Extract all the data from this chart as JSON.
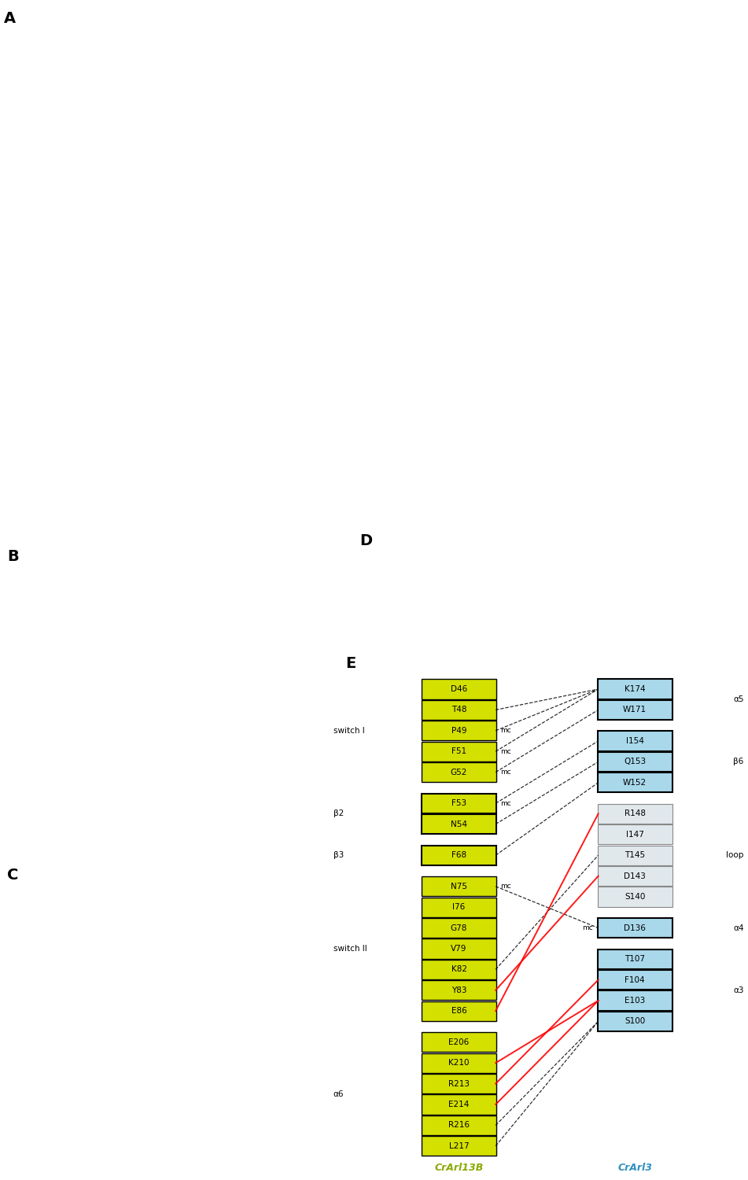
{
  "figure_width": 9.51,
  "figure_height": 15.0,
  "panel_E": {
    "left_label": "CrArl13B",
    "right_label": "CrArl3",
    "left_label_color": "#8aaa00",
    "right_label_color": "#3090c0",
    "yellow_fill": "#d4e000",
    "blue_fill": "#a8d8ea",
    "grey_fill": "#e0e8ec",
    "left_groups": [
      {
        "group": "switch I",
        "items": [
          "D46",
          "T48",
          "P49",
          "F51",
          "G52"
        ],
        "bordered": false
      },
      {
        "group": "β2",
        "items": [
          "F53",
          "N54"
        ],
        "bordered": true
      },
      {
        "group": "β3",
        "items": [
          "F68"
        ],
        "bordered": true
      },
      {
        "group": "switch II",
        "items": [
          "N75",
          "I76",
          "G78",
          "V79",
          "K82",
          "Y83",
          "E86"
        ],
        "bordered": false
      },
      {
        "group": "α6",
        "items": [
          "E206",
          "K210",
          "R213",
          "E214",
          "R216",
          "L217"
        ],
        "bordered": false
      }
    ],
    "right_groups": [
      {
        "group": "α5",
        "items": [
          "K174",
          "W171"
        ],
        "bordered": true,
        "grey": false
      },
      {
        "group": "β6",
        "items": [
          "I154",
          "Q153",
          "W152"
        ],
        "bordered": true,
        "grey": false
      },
      {
        "group": "loop",
        "items": [
          "R148",
          "I147",
          "T145",
          "D143",
          "S140"
        ],
        "bordered": false,
        "grey": true
      },
      {
        "group": "α4",
        "items": [
          "D136"
        ],
        "bordered": true,
        "grey": false
      },
      {
        "group": "α3",
        "items": [
          "T107",
          "F104",
          "E103",
          "S100"
        ],
        "bordered": true,
        "grey": false
      }
    ],
    "mc_left": [
      "P49",
      "F51",
      "G52",
      "F53",
      "N75"
    ],
    "mc_right_after": [
      "F53",
      "F68",
      "N75",
      "D136"
    ],
    "connections_black_dashed": [
      [
        "T48",
        "K174"
      ],
      [
        "P49",
        "K174"
      ],
      [
        "F51",
        "K174"
      ],
      [
        "G52",
        "W171"
      ],
      [
        "F53",
        "I154"
      ],
      [
        "N54",
        "Q153"
      ],
      [
        "F68",
        "W152"
      ],
      [
        "N75",
        "D136"
      ],
      [
        "K82",
        "T145"
      ],
      [
        "R216",
        "S100"
      ],
      [
        "L217",
        "S100"
      ]
    ],
    "connections_red_solid": [
      [
        "Y83",
        "D143"
      ],
      [
        "E86",
        "R148"
      ],
      [
        "K210",
        "E103"
      ],
      [
        "R213",
        "F104"
      ],
      [
        "E214",
        "E103"
      ]
    ]
  }
}
